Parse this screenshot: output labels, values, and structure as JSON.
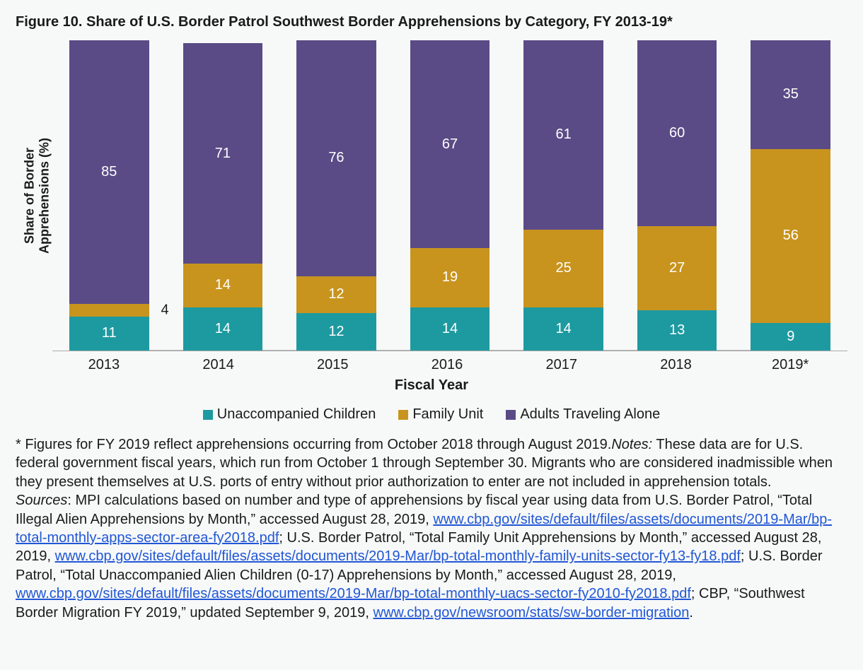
{
  "title": "Figure 10. Share of U.S. Border Patrol Southwest Border Apprehensions by Category, FY 2013-19*",
  "chart": {
    "type": "stacked-bar",
    "y_axis_title_line1": "Share of Border",
    "y_axis_title_line2": "Apprehensions (%)",
    "x_axis_title": "Fiscal Year",
    "ylim": [
      0,
      100
    ],
    "background_color": "#f7f8f8",
    "axis_line_color": "#a9a9a9",
    "label_fontsize": 20,
    "title_fontsize": 20,
    "value_label_color": "#ffffff",
    "categories": [
      "2013",
      "2014",
      "2015",
      "2016",
      "2017",
      "2018",
      "2019*"
    ],
    "series": [
      {
        "key": "unaccompanied",
        "name": "Unaccompanied Children",
        "color": "#1c9aa0",
        "values": [
          11,
          14,
          12,
          14,
          14,
          13,
          9
        ]
      },
      {
        "key": "family",
        "name": "Family Unit",
        "color": "#c9941e",
        "values": [
          4,
          14,
          12,
          19,
          25,
          27,
          56
        ],
        "side_label_indices": [
          0
        ]
      },
      {
        "key": "adults",
        "name": "Adults Traveling Alone",
        "color": "#5a4b87",
        "values": [
          85,
          71,
          76,
          67,
          61,
          60,
          35
        ]
      }
    ],
    "bar_width_ratio": 1.0
  },
  "legend_swatch_size": 14,
  "notes": {
    "para1_lead": "* Figures for FY 2019 reflect apprehensions occurring from October 2018 through August 2019.",
    "para1_noteslabel": "Notes:",
    "para1_rest": " These data are for U.S. federal government fiscal years, which run from October 1 through September 30. Migrants who are considered inadmissible when they present themselves at U.S. ports of entry without prior authorization to enter are not included in apprehension totals.",
    "sources_label": "Sources",
    "sources_pre": ": MPI calculations based on number and type of apprehensions by fiscal year using data from U.S. Border Patrol, “Total Illegal Alien Apprehensions by Month,” accessed August 28, 2019, ",
    "link1": "www.cbp.gov/sites/default/files/assets/documents/2019-Mar/bp-total-monthly-apps-sector-area-fy2018.pdf",
    "sources_mid1": "; U.S. Border Patrol, “Total Family Unit Apprehensions by Month,” accessed August 28, 2019, ",
    "link2": "www.cbp.gov/sites/default/files/assets/documents/2019-Mar/bp-total-monthly-family-units-sector-fy13-fy18.pdf",
    "sources_mid2": "; U.S. Border Patrol, “Total Unaccompanied Alien Children (0-17) Apprehensions by Month,” accessed August 28, 2019, ",
    "link3": "www.cbp.gov/sites/default/files/assets/documents/2019-Mar/bp-total-monthly-uacs-sector-fy2010-fy2018.pdf",
    "sources_mid3": "; CBP, “Southwest Border Migration FY 2019,” updated September 9, 2019, ",
    "link4": "www.cbp.gov/newsroom/stats/sw-border-migration",
    "sources_post": "."
  }
}
